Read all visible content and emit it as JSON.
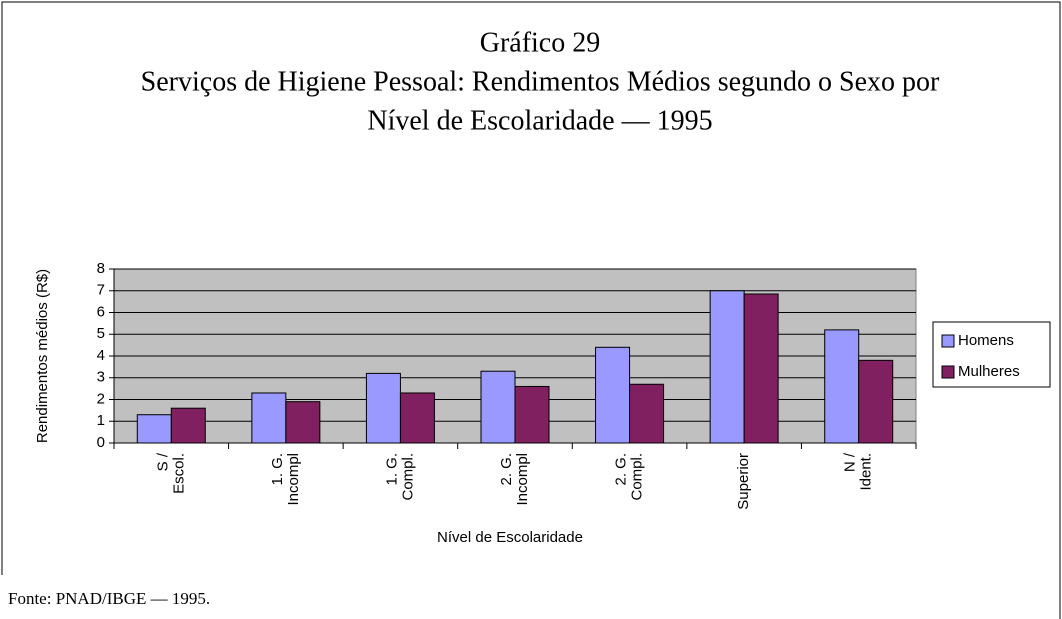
{
  "chart_data": {
    "type": "bar",
    "title": [
      "Gráfico 29",
      "Serviços de Higiene Pessoal: Rendimentos Médios segundo o Sexo por",
      "Nível de Escolaridade — 1995"
    ],
    "categories": [
      [
        "S /",
        "Escol."
      ],
      [
        "1. G.",
        "Incompl"
      ],
      [
        "1. G.",
        "Compl."
      ],
      [
        "2. G.",
        "Incompl"
      ],
      [
        "2. G.",
        "Compl."
      ],
      [
        "Superior"
      ],
      [
        "N /",
        "Ident."
      ]
    ],
    "series": [
      {
        "name": "Homens",
        "color": "#9999ff",
        "values": [
          1.3,
          2.3,
          3.2,
          3.3,
          4.4,
          7.0,
          5.2
        ]
      },
      {
        "name": "Mulheres",
        "color": "#802060",
        "values": [
          1.6,
          1.9,
          2.3,
          2.6,
          2.7,
          6.85,
          3.8
        ]
      }
    ],
    "ylim": [
      0,
      8
    ],
    "yticks": [
      0,
      1,
      2,
      3,
      4,
      5,
      6,
      7,
      8
    ],
    "grid": true,
    "xlabel": "Nível de Escolaridade",
    "ylabel": "Rendimentos médios (R$)",
    "legend": "right",
    "source": "Fonte: PNAD/IBGE — 1995."
  }
}
